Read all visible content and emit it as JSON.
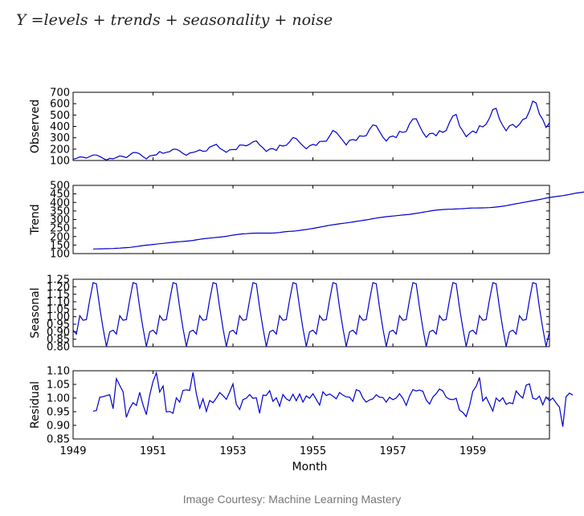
{
  "formula": "Y =levels + trends + seasonality + noise",
  "caption": "Image Courtesy: Machine Learning Mastery",
  "chart_data": {
    "type": "line",
    "xlabel": "Month",
    "x_range": [
      1949,
      1960.917
    ],
    "x_ticks": [
      "1949",
      "1951",
      "1953",
      "1955",
      "1957",
      "1959"
    ],
    "line_color": "#0000cc",
    "panels": [
      {
        "name": "Observed",
        "ylabel": "Observed",
        "ylim": [
          100,
          700
        ],
        "yticks": [
          "100",
          "200",
          "300",
          "400",
          "500",
          "600",
          "700"
        ],
        "x_start": 1949,
        "values": [
          112,
          118,
          132,
          129,
          121,
          135,
          148,
          148,
          136,
          119,
          104,
          118,
          115,
          126,
          141,
          135,
          125,
          149,
          170,
          170,
          158,
          133,
          114,
          140,
          145,
          150,
          178,
          163,
          172,
          178,
          199,
          199,
          184,
          162,
          146,
          166,
          171,
          180,
          193,
          181,
          183,
          218,
          230,
          242,
          209,
          191,
          172,
          194,
          196,
          196,
          236,
          235,
          229,
          243,
          264,
          272,
          237,
          211,
          180,
          201,
          204,
          188,
          235,
          227,
          234,
          264,
          302,
          293,
          259,
          229,
          203,
          229,
          242,
          233,
          267,
          269,
          270,
          315,
          364,
          347,
          312,
          274,
          237,
          278,
          284,
          277,
          317,
          313,
          318,
          374,
          413,
          405,
          355,
          306,
          271,
          306,
          315,
          301,
          356,
          348,
          355,
          422,
          465,
          467,
          404,
          347,
          305,
          336,
          340,
          318,
          362,
          348,
          363,
          435,
          491,
          505,
          404,
          359,
          310,
          337,
          360,
          342,
          406,
          396,
          420,
          472,
          548,
          559,
          463,
          407,
          362,
          405,
          417,
          391,
          419,
          461,
          472,
          535,
          622,
          606,
          508,
          461,
          390,
          432
        ]
      },
      {
        "name": "Trend",
        "ylabel": "Trend",
        "ylim": [
          100,
          500
        ],
        "yticks": [
          "100",
          "150",
          "200",
          "250",
          "300",
          "350",
          "400",
          "450",
          "500"
        ],
        "x_start": 1949.5,
        "values": [
          126.8,
          127.2,
          127.6,
          128.3,
          128.8,
          129.0,
          129.8,
          131.0,
          132.2,
          133.5,
          134.9,
          136.4,
          138.8,
          141.5,
          144.0,
          146.9,
          149.5,
          151.5,
          153.5,
          155.6,
          157.8,
          160.0,
          162.0,
          164.0,
          166.2,
          168.3,
          169.8,
          171.2,
          172.8,
          174.6,
          177.4,
          180.5,
          183.8,
          186.6,
          189.0,
          190.8,
          192.8,
          194.6,
          196.4,
          198.6,
          201.4,
          204.8,
          208.3,
          211.0,
          213.6,
          215.6,
          216.9,
          218.0,
          219.3,
          220.1,
          220.2,
          220.1,
          220.1,
          220.1,
          220.5,
          221.7,
          223.9,
          226.7,
          228.9,
          230.3,
          231.4,
          233.4,
          236.0,
          238.6,
          241.3,
          244.7,
          247.7,
          250.9,
          254.7,
          258.5,
          262.5,
          266.1,
          269.0,
          271.7,
          274.8,
          277.4,
          279.8,
          282.6,
          285.6,
          288.7,
          291.7,
          294.7,
          297.6,
          300.9,
          304.6,
          308.1,
          311.2,
          313.8,
          316.3,
          318.3,
          320.3,
          322.3,
          324.3,
          326.2,
          328.2,
          330.2,
          332.8,
          335.9,
          339.0,
          342.3,
          345.6,
          348.9,
          352.0,
          354.5,
          356.6,
          358.3,
          359.4,
          360.3,
          360.9,
          361.5,
          362.4,
          363.3,
          364.9,
          366.2,
          367.3,
          367.5,
          367.8,
          368.2,
          368.6,
          369.7,
          371.2,
          373.0,
          375.2,
          377.6,
          380.9,
          384.6,
          388.5,
          392.0,
          395.7,
          399.2,
          402.8,
          406.4,
          410.0,
          413.6,
          417.3,
          421.1,
          425.2,
          429.0,
          431.9,
          434.5,
          436.9,
          439.8,
          443.0,
          446.6,
          450.6,
          454.6,
          457.3,
          459.8,
          463.1,
          466.6
        ]
      },
      {
        "name": "Seasonal",
        "ylabel": "Seasonal",
        "ylim": [
          0.8,
          1.25
        ],
        "yticks": [
          "0.80",
          "0.85",
          "0.90",
          "0.95",
          "1.00",
          "1.05",
          "1.10",
          "1.15",
          "1.20",
          "1.25"
        ],
        "x_start": 1949,
        "pattern": [
          0.91,
          0.884,
          1.007,
          0.976,
          0.981,
          1.112,
          1.227,
          1.22,
          1.061,
          0.922,
          0.801,
          0.899
        ],
        "cycles": 12
      },
      {
        "name": "Residual",
        "ylabel": "Residual",
        "ylim": [
          0.85,
          1.1
        ],
        "yticks": [
          "0.85",
          "0.90",
          "0.95",
          "1.00",
          "1.05",
          "1.10"
        ],
        "x_start": 1949.5,
        "values": [
          0.952,
          0.954,
          1.003,
          1.005,
          1.009,
          1.012,
          0.961,
          1.071,
          1.046,
          1.023,
          0.929,
          0.962,
          0.983,
          0.973,
          1.021,
          0.974,
          0.939,
          1.011,
          1.061,
          1.092,
          1.022,
          1.044,
          0.949,
          0.951,
          0.944,
          1.001,
          0.985,
          1.028,
          1.03,
          1.028,
          1.094,
          1.016,
          0.963,
          0.997,
          0.951,
          0.991,
          0.983,
          1.0,
          1.02,
          1.009,
          0.995,
          1.022,
          1.052,
          0.977,
          0.958,
          0.994,
          0.999,
          1.013,
          0.999,
          1.001,
          0.944,
          1.011,
          1.009,
          1.027,
          0.988,
          1.001,
          0.97,
          1.013,
          0.997,
          0.99,
          1.014,
          0.99,
          1.015,
          0.985,
          1.008,
          0.999,
          1.016,
          0.995,
          0.974,
          1.023,
          1.009,
          1.015,
          1.007,
          0.997,
          1.02,
          1.011,
          1.004,
          1.003,
          0.988,
          1.031,
          1.026,
          1.0,
          0.985,
          0.993,
          0.997,
          1.012,
          1.003,
          1.002,
          0.985,
          1.003,
          0.994,
          1.0,
          1.016,
          0.999,
          0.973,
          1.007,
          1.031,
          1.026,
          1.029,
          1.025,
          0.993,
          0.978,
          1.003,
          1.016,
          1.033,
          1.026,
          1.003,
          0.996,
          0.994,
          0.999,
          0.956,
          0.947,
          0.932,
          0.971,
          1.025,
          1.043,
          1.075,
          0.989,
          1.003,
          0.978,
          0.952,
          1.0,
          0.988,
          1.001,
          0.977,
          0.983,
          0.979,
          1.026,
          1.011,
          1.0,
          1.047,
          1.052,
          1.0,
          0.995,
          1.007,
          0.975,
          1.004,
          0.99,
          1.0,
          0.982,
          0.967,
          0.895,
          1.005,
          1.018,
          1.011
        ]
      }
    ]
  }
}
